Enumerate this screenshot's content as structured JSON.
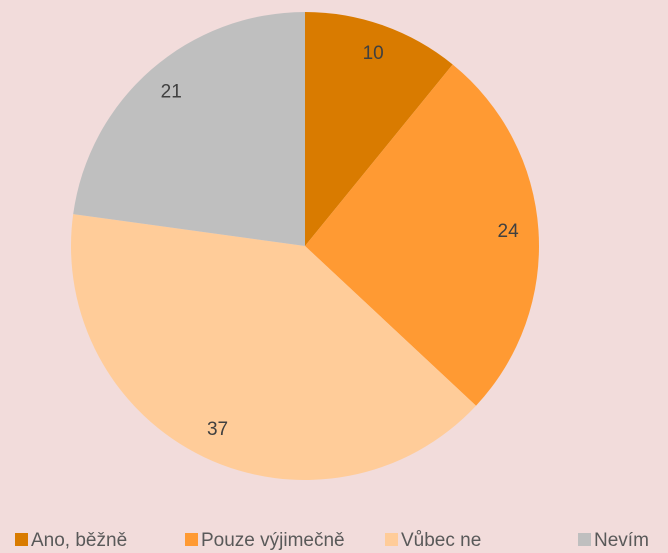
{
  "chart_data": {
    "type": "pie",
    "categories": [
      "Ano, běžně",
      "Pouze výjimečně",
      "Vůbec ne",
      "Nevím"
    ],
    "values": [
      10,
      24,
      37,
      21
    ],
    "colors": [
      "#d97b00",
      "#ff9a33",
      "#ffcc99",
      "#bfbfbf"
    ],
    "legend": "bottom"
  }
}
